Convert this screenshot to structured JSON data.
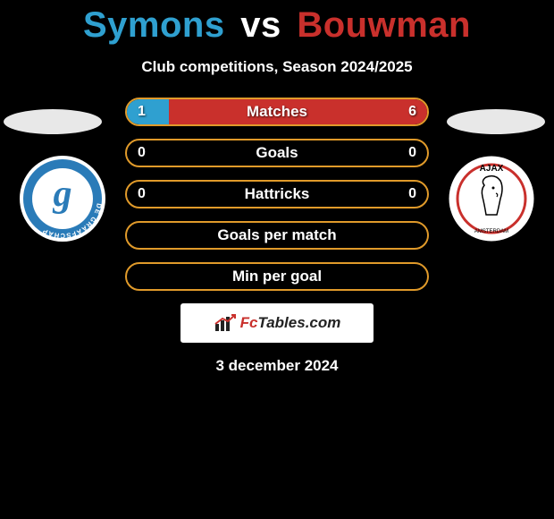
{
  "title": {
    "player1": "Symons",
    "vs": "vs",
    "player2": "Bouwman",
    "player1_color": "#2fa0d0",
    "vs_color": "#ffffff",
    "player2_color": "#c9302c"
  },
  "subtitle": "Club competitions, Season 2024/2025",
  "colors": {
    "left_accent": "#2fa0d0",
    "right_accent": "#c9302c",
    "neutral_border": "#e09a2a",
    "background": "#000000"
  },
  "stats": [
    {
      "label": "Matches",
      "left_value": "1",
      "right_value": "6",
      "has_values": true,
      "left_fill_pct": 14,
      "right_fill_pct": 86,
      "border_color": "#e09a2a",
      "left_fill_color": "#2fa0d0",
      "right_fill_color": "#c9302c"
    },
    {
      "label": "Goals",
      "left_value": "0",
      "right_value": "0",
      "has_values": true,
      "left_fill_pct": 0,
      "right_fill_pct": 0,
      "border_color": "#e09a2a",
      "left_fill_color": "#2fa0d0",
      "right_fill_color": "#c9302c"
    },
    {
      "label": "Hattricks",
      "left_value": "0",
      "right_value": "0",
      "has_values": true,
      "left_fill_pct": 0,
      "right_fill_pct": 0,
      "border_color": "#e09a2a",
      "left_fill_color": "#2fa0d0",
      "right_fill_color": "#c9302c"
    },
    {
      "label": "Goals per match",
      "left_value": "",
      "right_value": "",
      "has_values": false,
      "left_fill_pct": 0,
      "right_fill_pct": 0,
      "border_color": "#e09a2a",
      "left_fill_color": "#2fa0d0",
      "right_fill_color": "#c9302c"
    },
    {
      "label": "Min per goal",
      "left_value": "",
      "right_value": "",
      "has_values": false,
      "left_fill_pct": 0,
      "right_fill_pct": 0,
      "border_color": "#e09a2a",
      "left_fill_color": "#2fa0d0",
      "right_fill_color": "#c9302c"
    }
  ],
  "badge": {
    "text_prefix": "Fc",
    "text_suffix": "Tables.com"
  },
  "date": "3 december 2024",
  "clubs": {
    "left": {
      "name": "De Graafschap",
      "primary_color": "#2a7bb8",
      "secondary_color": "#ffffff",
      "letter": "g",
      "label": "DE GRAAFSCHAP"
    },
    "right": {
      "name": "Ajax",
      "primary_color": "#ffffff",
      "secondary_color": "#c9302c",
      "label_top": "AJAX"
    }
  }
}
